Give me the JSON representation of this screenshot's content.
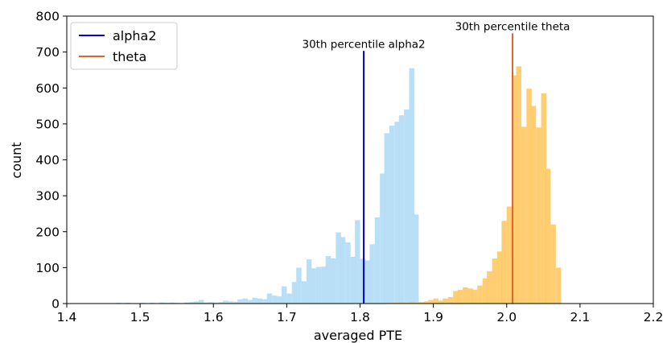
{
  "chart_data": {
    "type": "bar",
    "subtype": "histogram",
    "title": "",
    "xlabel": "averaged PTE",
    "ylabel": "count",
    "xlim": [
      1.4,
      2.2
    ],
    "ylim": [
      0,
      800
    ],
    "xticks": [
      "1.4",
      "1.5",
      "1.6",
      "1.7",
      "1.8",
      "1.9",
      "2.0",
      "2.1",
      "2.2"
    ],
    "yticks": [
      "0",
      "100",
      "200",
      "300",
      "400",
      "500",
      "600",
      "700",
      "800"
    ],
    "grid": false,
    "legend": {
      "position": "top-left",
      "entries": [
        "alpha2",
        "theta"
      ]
    },
    "bin_width": 0.0067,
    "series": [
      {
        "name": "alpha2",
        "histogram_color": "#b3dcf5",
        "bins": [
          [
            1.453,
            1
          ],
          [
            1.46,
            1
          ],
          [
            1.467,
            2
          ],
          [
            1.473,
            1
          ],
          [
            1.48,
            2
          ],
          [
            1.487,
            1
          ],
          [
            1.493,
            0
          ],
          [
            1.5,
            2
          ],
          [
            1.507,
            1
          ],
          [
            1.513,
            2
          ],
          [
            1.52,
            1
          ],
          [
            1.527,
            3
          ],
          [
            1.533,
            2
          ],
          [
            1.54,
            3
          ],
          [
            1.547,
            2
          ],
          [
            1.553,
            1
          ],
          [
            1.56,
            3
          ],
          [
            1.567,
            4
          ],
          [
            1.573,
            6
          ],
          [
            1.58,
            10
          ],
          [
            1.587,
            3
          ],
          [
            1.593,
            4
          ],
          [
            1.6,
            3
          ],
          [
            1.607,
            4
          ],
          [
            1.613,
            8
          ],
          [
            1.62,
            6
          ],
          [
            1.627,
            5
          ],
          [
            1.633,
            12
          ],
          [
            1.64,
            14
          ],
          [
            1.647,
            10
          ],
          [
            1.653,
            16
          ],
          [
            1.66,
            14
          ],
          [
            1.667,
            12
          ],
          [
            1.673,
            28
          ],
          [
            1.68,
            22
          ],
          [
            1.687,
            20
          ],
          [
            1.693,
            48
          ],
          [
            1.7,
            28
          ],
          [
            1.707,
            60
          ],
          [
            1.713,
            100
          ],
          [
            1.72,
            62
          ],
          [
            1.727,
            123
          ],
          [
            1.733,
            98
          ],
          [
            1.74,
            102
          ],
          [
            1.747,
            103
          ],
          [
            1.753,
            132
          ],
          [
            1.76,
            126
          ],
          [
            1.767,
            198
          ],
          [
            1.773,
            185
          ],
          [
            1.78,
            170
          ],
          [
            1.787,
            130
          ],
          [
            1.793,
            232
          ],
          [
            1.8,
            125
          ],
          [
            1.807,
            120
          ],
          [
            1.813,
            165
          ],
          [
            1.82,
            240
          ],
          [
            1.827,
            362
          ],
          [
            1.833,
            474
          ],
          [
            1.84,
            495
          ],
          [
            1.847,
            506
          ],
          [
            1.853,
            524
          ],
          [
            1.86,
            540
          ],
          [
            1.867,
            655
          ],
          [
            1.873,
            248
          ],
          [
            1.88,
            0
          ]
        ]
      },
      {
        "name": "theta",
        "histogram_color": "#ffc966",
        "bins": [
          [
            1.84,
            2
          ],
          [
            1.847,
            3
          ],
          [
            1.853,
            4
          ],
          [
            1.86,
            2
          ],
          [
            1.867,
            5
          ],
          [
            1.873,
            3
          ],
          [
            1.88,
            4
          ],
          [
            1.887,
            6
          ],
          [
            1.893,
            10
          ],
          [
            1.9,
            14
          ],
          [
            1.907,
            8
          ],
          [
            1.913,
            14
          ],
          [
            1.92,
            18
          ],
          [
            1.927,
            35
          ],
          [
            1.933,
            38
          ],
          [
            1.94,
            45
          ],
          [
            1.947,
            42
          ],
          [
            1.953,
            38
          ],
          [
            1.96,
            50
          ],
          [
            1.967,
            70
          ],
          [
            1.973,
            90
          ],
          [
            1.98,
            125
          ],
          [
            1.987,
            145
          ],
          [
            1.993,
            230
          ],
          [
            2.0,
            270
          ],
          [
            2.007,
            635
          ],
          [
            2.013,
            660
          ],
          [
            2.02,
            492
          ],
          [
            2.027,
            598
          ],
          [
            2.033,
            550
          ],
          [
            2.04,
            490
          ],
          [
            2.047,
            585
          ],
          [
            2.053,
            375
          ],
          [
            2.06,
            220
          ],
          [
            2.067,
            100
          ],
          [
            2.073,
            0
          ]
        ]
      }
    ],
    "reference_lines": [
      {
        "series": "alpha2",
        "x": 1.805,
        "ymax": 703,
        "color": "#0000dd",
        "label": "30th percentile alpha2"
      },
      {
        "series": "theta",
        "x": 2.008,
        "ymax": 752,
        "color": "#d9662a",
        "label": "30th percentile theta"
      }
    ]
  }
}
